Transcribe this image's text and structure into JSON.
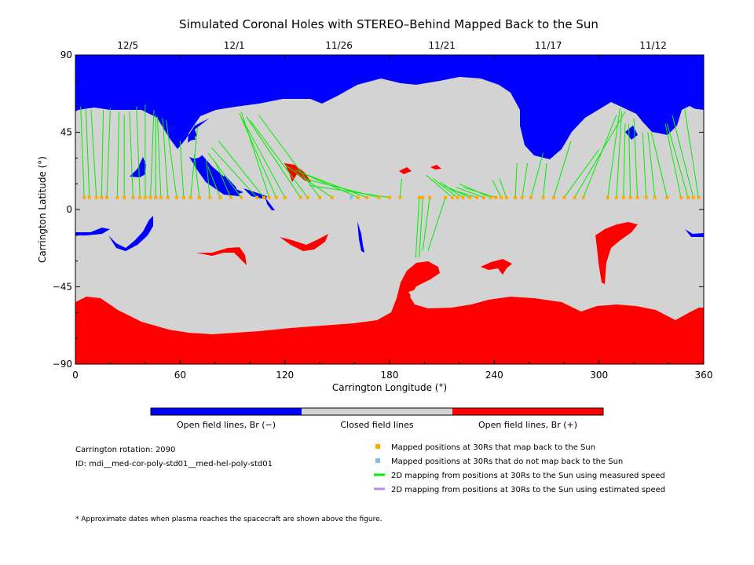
{
  "title": "Simulated Coronal Holes with STEREO–Behind Mapped Back to the Sun",
  "chart_data": {
    "type": "map",
    "xlabel": "Carrington Longitude (°)",
    "ylabel": "Carrington Latitude (°)",
    "xlim": [
      0,
      360
    ],
    "ylim": [
      -90,
      90
    ],
    "x_ticks": [
      0,
      60,
      120,
      180,
      240,
      300,
      360
    ],
    "y_ticks": [
      -90,
      -45,
      0,
      45,
      90
    ],
    "y_tick_labels": [
      "−90",
      "−45",
      "0",
      "45",
      "90"
    ],
    "top_axis_dates": [
      {
        "label": "12/5",
        "lon": 30
      },
      {
        "label": "12/1",
        "lon": 91
      },
      {
        "label": "11/26",
        "lon": 151
      },
      {
        "label": "11/21",
        "lon": 210
      },
      {
        "label": "11/17",
        "lon": 271
      },
      {
        "label": "11/12",
        "lon": 331
      }
    ],
    "mapped_positions_lat": 7,
    "mapped_lon": [
      5,
      8,
      12,
      15,
      18,
      24,
      28,
      33,
      37,
      40,
      43,
      46,
      49,
      53,
      58,
      62,
      66,
      71,
      77,
      83,
      89,
      95,
      104,
      108,
      111,
      115,
      120,
      129,
      133,
      140,
      147,
      162,
      167,
      174,
      180,
      186,
      197,
      199,
      203,
      212,
      216,
      219,
      222,
      226,
      230,
      234,
      238,
      241,
      244,
      247,
      252,
      256,
      261,
      268,
      274,
      280,
      286,
      291,
      305,
      310,
      314,
      318,
      322,
      327,
      332,
      339,
      347,
      351,
      354,
      357
    ],
    "mapped_lon_fail": [
      158
    ],
    "field_lines": [
      [
        5,
        7,
        3,
        60
      ],
      [
        8,
        7,
        6,
        59
      ],
      [
        12,
        7,
        9,
        58
      ],
      [
        15,
        7,
        16,
        58
      ],
      [
        18,
        7,
        20,
        59
      ],
      [
        24,
        7,
        25,
        57
      ],
      [
        28,
        7,
        28,
        55
      ],
      [
        33,
        7,
        31,
        57
      ],
      [
        37,
        7,
        35,
        60
      ],
      [
        40,
        7,
        40,
        61
      ],
      [
        43,
        7,
        45,
        58
      ],
      [
        46,
        7,
        46,
        55
      ],
      [
        49,
        7,
        47,
        54
      ],
      [
        53,
        7,
        50,
        53
      ],
      [
        58,
        7,
        52,
        52
      ],
      [
        62,
        7,
        60,
        40
      ],
      [
        66,
        7,
        70,
        48
      ],
      [
        71,
        7,
        68,
        32
      ],
      [
        77,
        7,
        75,
        29
      ],
      [
        83,
        7,
        76,
        25
      ],
      [
        89,
        7,
        80,
        28
      ],
      [
        95,
        7,
        76,
        33
      ],
      [
        104,
        7,
        78,
        36
      ],
      [
        108,
        7,
        82,
        40
      ],
      [
        111,
        7,
        95,
        57
      ],
      [
        115,
        7,
        94,
        56
      ],
      [
        120,
        7,
        96,
        52
      ],
      [
        129,
        7,
        98,
        54
      ],
      [
        133,
        7,
        100,
        52
      ],
      [
        140,
        7,
        105,
        55
      ],
      [
        147,
        7,
        120,
        26
      ],
      [
        162,
        7,
        126,
        23
      ],
      [
        167,
        7,
        128,
        22
      ],
      [
        174,
        7,
        131,
        18
      ],
      [
        180,
        7,
        134,
        14
      ],
      [
        186,
        7,
        187,
        18
      ],
      [
        197,
        7,
        195,
        -28
      ],
      [
        199,
        7,
        197,
        -28
      ],
      [
        203,
        7,
        199,
        -24
      ],
      [
        212,
        7,
        202,
        -24
      ],
      [
        216,
        7,
        201,
        20
      ],
      [
        219,
        7,
        205,
        18
      ],
      [
        222,
        7,
        209,
        16
      ],
      [
        226,
        7,
        211,
        14
      ],
      [
        230,
        7,
        214,
        12
      ],
      [
        234,
        7,
        218,
        13
      ],
      [
        238,
        7,
        220,
        15
      ],
      [
        241,
        7,
        222,
        13
      ],
      [
        244,
        7,
        239,
        17
      ],
      [
        247,
        7,
        243,
        18
      ],
      [
        252,
        7,
        253,
        27
      ],
      [
        256,
        7,
        259,
        27
      ],
      [
        261,
        7,
        268,
        33
      ],
      [
        268,
        7,
        270,
        27
      ],
      [
        274,
        7,
        284,
        40
      ],
      [
        280,
        7,
        300,
        35
      ],
      [
        286,
        7,
        315,
        57
      ],
      [
        291,
        7,
        310,
        55
      ],
      [
        305,
        7,
        312,
        59
      ],
      [
        310,
        7,
        313,
        57
      ],
      [
        314,
        7,
        315,
        50
      ],
      [
        318,
        7,
        317,
        50
      ],
      [
        322,
        7,
        320,
        53
      ],
      [
        327,
        7,
        325,
        45
      ],
      [
        332,
        7,
        328,
        45
      ],
      [
        339,
        7,
        330,
        45
      ],
      [
        347,
        7,
        338,
        50
      ],
      [
        351,
        7,
        339,
        50
      ],
      [
        354,
        7,
        342,
        55
      ],
      [
        357,
        7,
        349,
        59
      ]
    ]
  },
  "colorbar": {
    "segments": [
      {
        "label": "Open field lines, Br (−)",
        "color": "#0000ff"
      },
      {
        "label": "Closed field lines",
        "color": "#d3d3d3"
      },
      {
        "label": "Open field lines, Br (+)",
        "color": "#ff0000"
      }
    ]
  },
  "info": {
    "rotation": "Carrington rotation: 2090",
    "id": "ID: mdi__med-cor-poly-std01__med-hel-poly-std01"
  },
  "legend": [
    {
      "label": "Mapped positions at 30Rs that map back to the Sun",
      "color": "#ffaa00",
      "kind": "square"
    },
    {
      "label": "Mapped positions at 30Rs that do not map back to the Sun",
      "color": "#87bdee",
      "kind": "square"
    },
    {
      "label": "2D mapping from positions at 30Rs to the Sun using measured speed",
      "color": "#00ee00",
      "kind": "line"
    },
    {
      "label": "2D mapping from positions at 30Rs to the Sun using estimated speed",
      "color": "#b98cf0",
      "kind": "line"
    }
  ],
  "footnote": "* Approximate dates when plasma reaches the spacecraft are shown above the figure.",
  "colors": {
    "blue": "#0000ff",
    "red": "#ff0000",
    "gray": "#d3d3d3",
    "green": "#00ee00",
    "orange": "#ffaa00"
  }
}
